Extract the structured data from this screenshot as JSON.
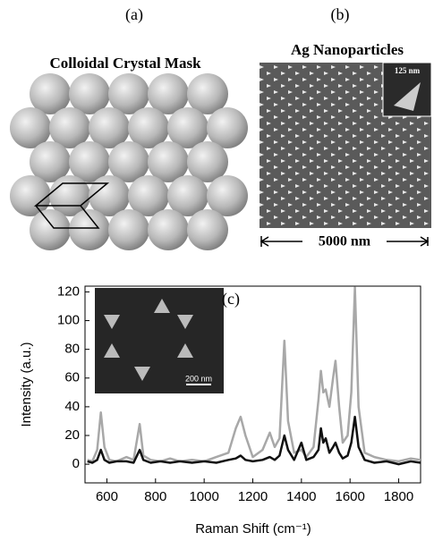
{
  "panel_a": {
    "label": "(a)",
    "title": "Colloidal Crystal Mask"
  },
  "panel_b": {
    "label": "(b)",
    "title": "Ag Nanoparticles",
    "inset_scale": "125 nm",
    "scale": "5000 nm"
  },
  "chart_data": {
    "type": "line",
    "panel_label": "(c)",
    "inset_scale": "200 nm",
    "x_label": "Raman Shift (cm⁻¹)",
    "y_label": "Intensity (a.u.)",
    "x": [
      520,
      540,
      560,
      575,
      590,
      610,
      640,
      680,
      710,
      735,
      750,
      780,
      820,
      860,
      900,
      950,
      1000,
      1050,
      1100,
      1130,
      1150,
      1170,
      1200,
      1240,
      1270,
      1290,
      1310,
      1330,
      1345,
      1370,
      1400,
      1420,
      1450,
      1470,
      1480,
      1490,
      1500,
      1515,
      1530,
      1540,
      1555,
      1570,
      1590,
      1605,
      1620,
      1635,
      1660,
      1700,
      1750,
      1800,
      1850,
      1890
    ],
    "series": [
      {
        "color": "#a8a8a8",
        "values": [
          3,
          2,
          10,
          36,
          12,
          3,
          2,
          5,
          3,
          28,
          6,
          3,
          2,
          4,
          2,
          3,
          2,
          5,
          8,
          25,
          33,
          20,
          5,
          10,
          22,
          12,
          18,
          86,
          30,
          8,
          10,
          5,
          12,
          45,
          65,
          50,
          52,
          40,
          60,
          72,
          40,
          15,
          20,
          50,
          123,
          40,
          8,
          5,
          3,
          2,
          4,
          3
        ]
      },
      {
        "color": "#111111",
        "values": [
          2,
          1,
          3,
          10,
          3,
          1,
          2,
          2,
          1,
          10,
          3,
          1,
          2,
          1,
          2,
          1,
          2,
          1,
          3,
          4,
          6,
          3,
          2,
          3,
          5,
          3,
          6,
          20,
          10,
          3,
          15,
          3,
          5,
          10,
          25,
          15,
          18,
          8,
          12,
          15,
          8,
          4,
          6,
          15,
          33,
          12,
          3,
          1,
          2,
          0,
          2,
          1
        ]
      }
    ],
    "xlim": [
      510,
      1890
    ],
    "ylim": [
      -13,
      124
    ],
    "xticks": [
      600,
      800,
      1000,
      1200,
      1400,
      1600,
      1800
    ],
    "yticks": [
      0,
      20,
      40,
      60,
      80,
      100,
      120
    ]
  }
}
